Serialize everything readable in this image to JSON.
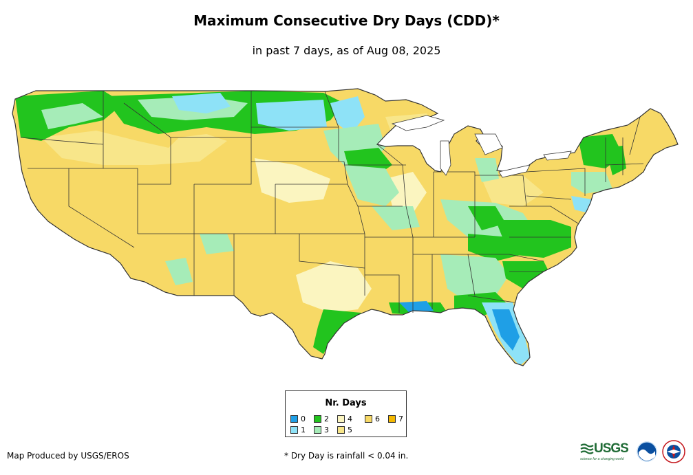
{
  "header": {
    "title": "Maximum Consecutive Dry Days (CDD)*",
    "subtitle": "in past 7 days, as of Aug 08, 2025"
  },
  "legend": {
    "title": "Nr. Days",
    "items": [
      {
        "label": "0",
        "color": "#1f9fe6"
      },
      {
        "label": "1",
        "color": "#8ee2f7"
      },
      {
        "label": "2",
        "color": "#22c41e"
      },
      {
        "label": "3",
        "color": "#a6ecb8"
      },
      {
        "label": "4",
        "color": "#fbf5c0"
      },
      {
        "label": "5",
        "color": "#f8e68a"
      },
      {
        "label": "6",
        "color": "#f7d966"
      },
      {
        "label": "7",
        "color": "#f4b800"
      }
    ]
  },
  "map": {
    "region": "Contiguous United States",
    "border_color": "#333333",
    "base_color": "#f7d966"
  },
  "footer": {
    "credit": "Map Produced by USGS/EROS",
    "note": "* Dry Day is rainfall < 0.04 in."
  },
  "logos": {
    "usgs": {
      "text": "USGS",
      "tagline": "science for a changing world",
      "color": "#1f6b35"
    },
    "noaa": {
      "icon": "noaa-logo-icon"
    },
    "nws": {
      "icon": "nws-logo-icon"
    }
  }
}
